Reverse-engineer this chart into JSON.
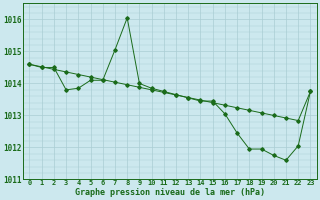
{
  "bg_color": "#cce8ee",
  "grid_color": "#aacdd4",
  "line_color": "#1a6b1a",
  "hours": [
    0,
    1,
    2,
    3,
    4,
    5,
    6,
    7,
    8,
    9,
    10,
    11,
    12,
    13,
    14,
    15,
    16,
    17,
    18,
    19,
    20,
    21,
    22,
    23
  ],
  "series1": [
    1014.6,
    1014.5,
    1014.5,
    1013.8,
    1013.85,
    1014.1,
    1014.1,
    1015.05,
    1016.05,
    1014.0,
    1013.85,
    1013.75,
    1013.65,
    1013.55,
    1013.45,
    1013.45,
    1013.05,
    1012.45,
    1011.95,
    1011.95,
    1011.75,
    1011.6,
    1012.05,
    1013.75
  ],
  "series2": [
    1014.6,
    1014.52,
    1014.44,
    1014.36,
    1014.28,
    1014.2,
    1014.12,
    1014.04,
    1013.96,
    1013.88,
    1013.8,
    1013.72,
    1013.64,
    1013.56,
    1013.48,
    1013.4,
    1013.32,
    1013.24,
    1013.16,
    1013.08,
    1013.0,
    1012.92,
    1012.84,
    1013.75
  ],
  "ylim_min": 1011.0,
  "ylim_max": 1016.5,
  "yticks": [
    1011,
    1012,
    1013,
    1014,
    1015,
    1016
  ],
  "xlabel": "Graphe pression niveau de la mer (hPa)",
  "xlabel_fontsize": 6.0,
  "tick_fontsize": 5.0,
  "ytick_fontsize": 5.5
}
